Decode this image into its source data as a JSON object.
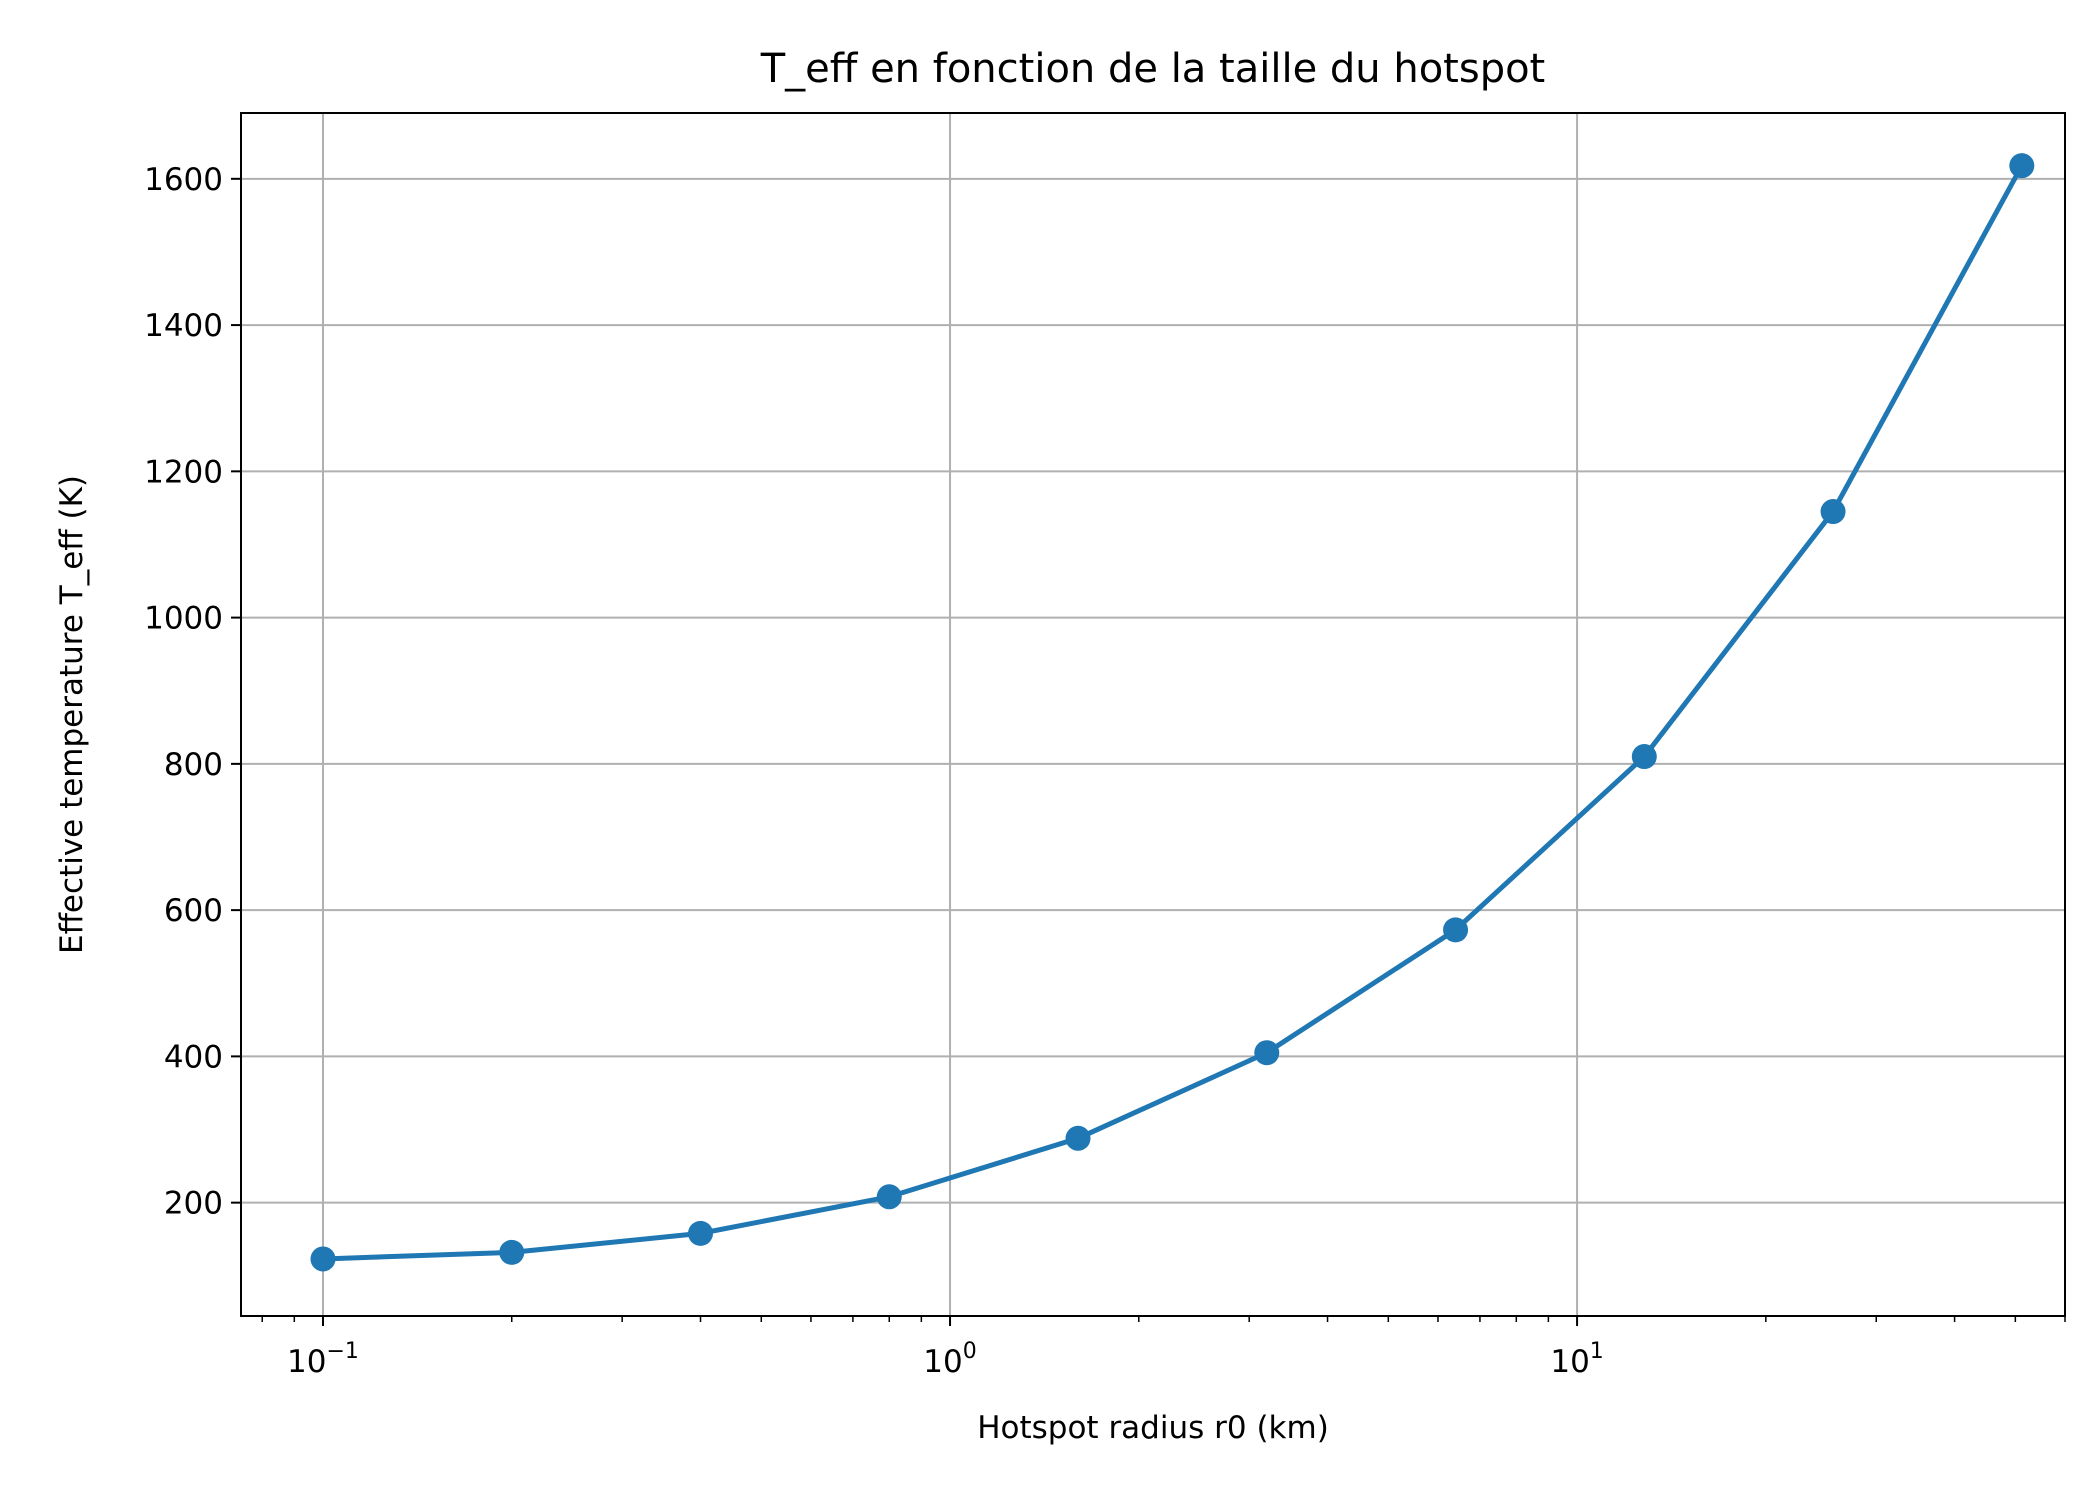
{
  "chart_data": {
    "type": "line",
    "title": "T_eff en fonction de la taille du hotspot",
    "xlabel": "Hotspot radius r0 (km)",
    "ylabel": "Effective temperature T_eff (K)",
    "xscale": "log",
    "xlim": [
      0.074,
      60
    ],
    "ylim": [
      45,
      1690
    ],
    "x_ticks": [
      {
        "value": 0.1,
        "base": "10",
        "exp": "−1"
      },
      {
        "value": 1,
        "base": "10",
        "exp": "0"
      },
      {
        "value": 10,
        "base": "10",
        "exp": "1"
      }
    ],
    "y_ticks": [
      200,
      400,
      600,
      800,
      1000,
      1200,
      1400,
      1600
    ],
    "grid": true,
    "series": [
      {
        "color": "#1f77b4",
        "marker": "circle",
        "points": [
          {
            "x": 0.1,
            "y": 123
          },
          {
            "x": 0.2,
            "y": 132
          },
          {
            "x": 0.4,
            "y": 158
          },
          {
            "x": 0.8,
            "y": 208
          },
          {
            "x": 1.6,
            "y": 288
          },
          {
            "x": 3.2,
            "y": 405
          },
          {
            "x": 6.4,
            "y": 573
          },
          {
            "x": 12.8,
            "y": 810
          },
          {
            "x": 25.6,
            "y": 1145
          },
          {
            "x": 51.2,
            "y": 1618
          }
        ]
      }
    ]
  }
}
